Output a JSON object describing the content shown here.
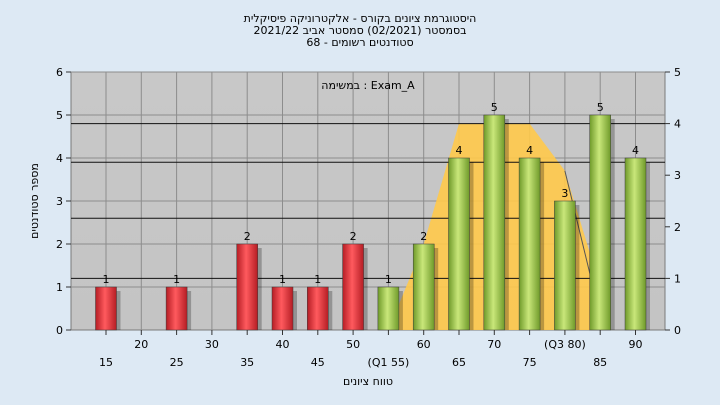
{
  "header": {
    "title_line1": "היסטוגרמת ציונים בקורס - אלקטרוניקה פיסיקלית",
    "title_line2": "בסמסטר  (02/2021)  סמסטר אביב 2021/22",
    "title_line3": "68 - סטודנטים רשומים",
    "annotation": "במשימה : Exam_A"
  },
  "chart_data": {
    "type": "bar",
    "title": "היסטוגרמת ציונים בקורס - אלקטרוניקה פיסיקלית",
    "xlabel": "טווח ציונים",
    "ylabel": "מספר סטודנטים",
    "ylim": [
      0,
      6
    ],
    "y2lim": [
      0,
      5
    ],
    "yticks": [
      0,
      1,
      2,
      3,
      4,
      5,
      6
    ],
    "y2ticks": [
      0,
      1,
      2,
      3,
      4,
      5
    ],
    "grid": true,
    "categories": [
      15,
      20,
      25,
      30,
      35,
      40,
      45,
      50,
      55,
      60,
      65,
      70,
      75,
      80,
      85,
      90
    ],
    "category_labels": [
      "15",
      "20",
      "25",
      "30",
      "35",
      "40",
      "45",
      "50",
      "(Q1 55)",
      "60",
      "65",
      "70",
      "75",
      "(Q3 80)",
      "85",
      "90"
    ],
    "values": [
      1,
      0,
      1,
      0,
      2,
      1,
      1,
      2,
      1,
      2,
      4,
      5,
      4,
      3,
      5,
      4
    ],
    "bar_colors": [
      "#e02f36",
      "#e02f36",
      "#e02f36",
      "#e02f36",
      "#e02f36",
      "#e02f36",
      "#e02f36",
      "#e02f36",
      "#9ec94b",
      "#9ec94b",
      "#9ec94b",
      "#9ec94b",
      "#9ec94b",
      "#9ec94b",
      "#9ec94b",
      "#9ec94b"
    ],
    "band": {
      "color": "#ffc94a",
      "x": [
        55,
        60,
        65,
        70,
        75,
        80,
        85
      ],
      "y": [
        0,
        2,
        4.8,
        4.8,
        4.8,
        3.7,
        1.0
      ]
    },
    "reference_lines": [
      1.2,
      2.6,
      3.9,
      4.8
    ]
  }
}
